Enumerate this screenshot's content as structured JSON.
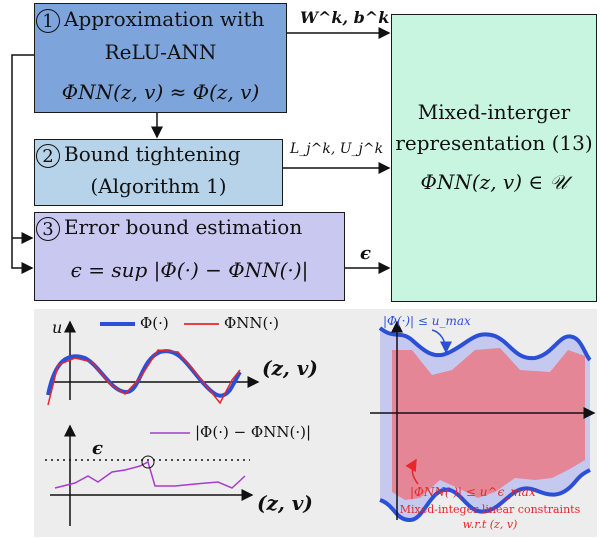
{
  "box1": {
    "num": "1",
    "title_line1": "Approximation with",
    "title_line2": "ReLU-ANN",
    "formula": "ΦNN(z, v) ≈ Φ(z, v)"
  },
  "box2": {
    "num": "2",
    "title_line1": "Bound tightening",
    "title_line2": "(Algorithm 1)"
  },
  "box3": {
    "num": "3",
    "title": "Error bound estimation",
    "formula": "ϵ = sup |Φ(·) − ΦNN(·)|"
  },
  "box4": {
    "line1": "Mixed-interger",
    "line2": "representation (13)",
    "formula": "ΦNN(z, v) ∈ 𝒰"
  },
  "arrows": {
    "wb": "W^k, b^k",
    "lu": "L_j^k, U_j^k",
    "eps": "ϵ"
  },
  "plot1": {
    "ylabel": "u",
    "legend_phi": "Φ(·)",
    "legend_phinn": "ΦNN(·)",
    "xlabel": "(z, v)"
  },
  "plot2": {
    "eps_label": "ϵ",
    "legend": "|Φ(·) − ΦNN(·)|",
    "xlabel": "(z, v)"
  },
  "plot3": {
    "top_label": "|Φ(·)| ≤ u_max",
    "bottom_label": "|ΦNN(·)| ≤ u^ϵ_max",
    "caption1": "Mixed-integer linear constraints",
    "caption2": "w.r.t (z, v)"
  },
  "colors": {
    "box1": "#7ea4dc",
    "box2": "#b6d3ea",
    "box3": "#c9c8f1",
    "box4": "#c8f5df",
    "blue": "#2b4fd6",
    "red": "#e8262b",
    "purple": "#a83bd0",
    "panel": "#ededed"
  }
}
